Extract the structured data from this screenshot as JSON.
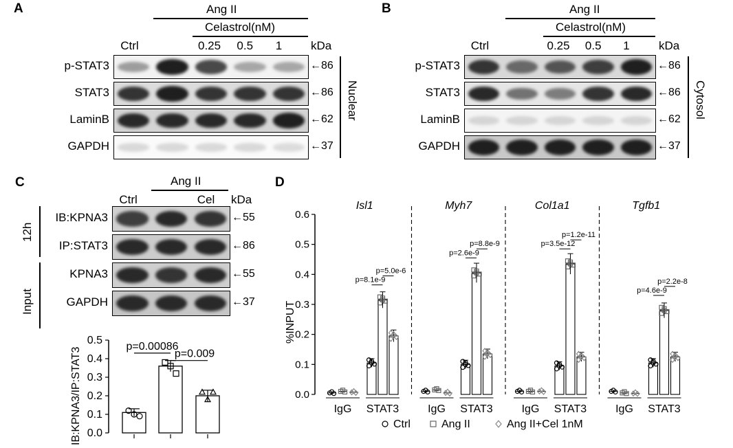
{
  "panel_letters": {
    "a": "A",
    "b": "B",
    "c": "C",
    "d": "D"
  },
  "panel_a": {
    "treatment": "Ang II",
    "drug": "Celastrol(nM)",
    "lanes": [
      "Ctrl",
      "",
      "0.25",
      "0.5",
      "1"
    ],
    "unit": "kDa",
    "fraction": "Nuclear",
    "rows": [
      {
        "label": "p-STAT3",
        "mw": "←86",
        "bg": "#f2f2f2",
        "intensity": [
          0.35,
          0.95,
          0.75,
          0.3,
          0.3
        ]
      },
      {
        "label": "STAT3",
        "mw": "←86",
        "bg": "#dcdcdc",
        "intensity": [
          0.85,
          0.95,
          0.85,
          0.85,
          0.85
        ]
      },
      {
        "label": "LaminB",
        "mw": "←62",
        "bg": "#d4d4d4",
        "intensity": [
          0.9,
          0.9,
          0.9,
          0.9,
          0.95
        ]
      },
      {
        "label": "GAPDH",
        "mw": "←37",
        "bg": "#fafafa",
        "intensity": [
          0.06,
          0.06,
          0.06,
          0.06,
          0.05
        ]
      }
    ]
  },
  "panel_b": {
    "treatment": "Ang II",
    "drug": "Celastrol(nM)",
    "lanes": [
      "Ctrl",
      "",
      "0.25",
      "0.5",
      "1"
    ],
    "unit": "kDa",
    "fraction": "Cytosol",
    "rows": [
      {
        "label": "p-STAT3",
        "mw": "←86",
        "bg": "#d8d8d8",
        "intensity": [
          0.85,
          0.6,
          0.7,
          0.8,
          0.95
        ]
      },
      {
        "label": "STAT3",
        "mw": "←86",
        "bg": "#e6e6e6",
        "intensity": [
          0.9,
          0.55,
          0.5,
          0.85,
          0.9
        ]
      },
      {
        "label": "LaminB",
        "mw": "←62",
        "bg": "#f4f4f4",
        "intensity": [
          0.08,
          0.08,
          0.08,
          0.08,
          0.08
        ]
      },
      {
        "label": "GAPDH",
        "mw": "←37",
        "bg": "#c8c8c8",
        "intensity": [
          0.95,
          0.95,
          0.95,
          0.95,
          0.95
        ]
      }
    ]
  },
  "panel_c": {
    "treatment": "Ang II",
    "lanes": [
      "Ctrl",
      "",
      "Cel"
    ],
    "unit": "kDa",
    "group_12h": "12h",
    "group_input": "Input",
    "rows": [
      {
        "label": "IB:KPNA3",
        "mw": "←55",
        "bg": "#d0d0d0",
        "intensity": [
          0.8,
          0.9,
          0.85
        ]
      },
      {
        "label": "IP:STAT3",
        "mw": "←86",
        "bg": "#cccccc",
        "intensity": [
          0.9,
          0.9,
          0.9
        ]
      },
      {
        "label": "KPNA3",
        "mw": "←55",
        "bg": "#cfcfcf",
        "intensity": [
          0.9,
          0.85,
          0.9
        ]
      },
      {
        "label": "GAPDH",
        "mw": "←37",
        "bg": "#c6c6c6",
        "intensity": [
          0.9,
          0.9,
          0.9
        ]
      }
    ]
  },
  "chart_data": [
    {
      "type": "bar",
      "ylabel": "IB:KPNA3/IP:STAT3",
      "ylim": [
        0,
        0.5
      ],
      "yticks": [
        "0.0",
        "0.1",
        "0.2",
        "0.3",
        "0.4",
        "0.5"
      ],
      "categories": [
        "Ctrl",
        "Ang II",
        "Ang II+Cel"
      ],
      "values": [
        0.11,
        0.36,
        0.2
      ],
      "errors": [
        0.02,
        0.03,
        0.03
      ],
      "points": [
        [
          0.12,
          0.1,
          0.09
        ],
        [
          0.38,
          0.36,
          0.32
        ],
        [
          0.22,
          0.18,
          0.22
        ]
      ],
      "markers": [
        "circle",
        "square",
        "triangle"
      ],
      "annotations": [
        "p=0.00086",
        "p=0.009"
      ]
    },
    {
      "type": "bar",
      "ylabel": "%INPUT",
      "ylim": [
        0,
        0.6
      ],
      "yticks": [
        "0.0",
        "0.1",
        "0.2",
        "0.3",
        "0.4",
        "0.5",
        "0.6"
      ],
      "genes": [
        "Isl1",
        "Myh7",
        "Col1a1",
        "Tgfb1"
      ],
      "groups": [
        "IgG",
        "STAT3"
      ],
      "series": [
        {
          "name": "Ctrl",
          "marker": "circle"
        },
        {
          "name": "Ang II",
          "marker": "square"
        },
        {
          "name": "Ang II+Cel 1nM",
          "marker": "diamond"
        }
      ],
      "values": [
        {
          "IgG": [
            0.005,
            0.01,
            0.007
          ],
          "STAT3": [
            0.105,
            0.315,
            0.195
          ]
        },
        {
          "IgG": [
            0.01,
            0.015,
            0.005
          ],
          "STAT3": [
            0.1,
            0.405,
            0.135
          ]
        },
        {
          "IgG": [
            0.01,
            0.01,
            0.01
          ],
          "STAT3": [
            0.095,
            0.435,
            0.125
          ]
        },
        {
          "IgG": [
            0.01,
            0.005,
            0.003
          ],
          "STAT3": [
            0.105,
            0.28,
            0.125
          ]
        }
      ],
      "annotations": [
        [
          "p=8.1e-9",
          "p=5.0e-6"
        ],
        [
          "p=2.6e-9",
          "p=8.8e-9"
        ],
        [
          "p=3.5e-12",
          "p=1.2e-11"
        ],
        [
          "p=4.6e-9",
          "p=2.2e-8"
        ]
      ]
    }
  ]
}
